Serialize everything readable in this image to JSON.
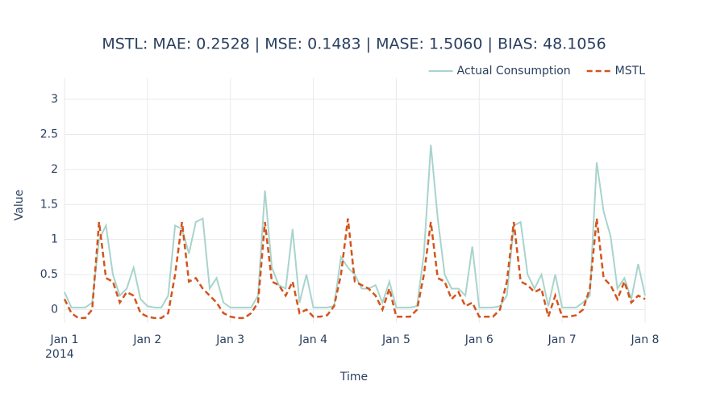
{
  "chart_data": {
    "type": "line",
    "title": "MSTL: MAE: 0.2528 | MSE: 0.1483 | MASE: 1.5060 | BIAS: 48.1056",
    "xlabel": "Time",
    "ylabel": "Value",
    "x": [
      "2014-01-01T00:00",
      "2014-01-01T02:00",
      "2014-01-01T04:00",
      "2014-01-01T06:00",
      "2014-01-01T08:00",
      "2014-01-01T10:00",
      "2014-01-01T12:00",
      "2014-01-01T14:00",
      "2014-01-01T16:00",
      "2014-01-01T18:00",
      "2014-01-01T20:00",
      "2014-01-01T22:00",
      "2014-01-02T00:00",
      "2014-01-02T02:00",
      "2014-01-02T04:00",
      "2014-01-02T06:00",
      "2014-01-02T08:00",
      "2014-01-02T10:00",
      "2014-01-02T12:00",
      "2014-01-02T14:00",
      "2014-01-02T16:00",
      "2014-01-02T18:00",
      "2014-01-02T20:00",
      "2014-01-02T22:00",
      "2014-01-03T00:00",
      "2014-01-03T02:00",
      "2014-01-03T04:00",
      "2014-01-03T06:00",
      "2014-01-03T08:00",
      "2014-01-03T10:00",
      "2014-01-03T12:00",
      "2014-01-03T14:00",
      "2014-01-03T16:00",
      "2014-01-03T18:00",
      "2014-01-03T20:00",
      "2014-01-03T22:00",
      "2014-01-04T00:00",
      "2014-01-04T02:00",
      "2014-01-04T04:00",
      "2014-01-04T06:00",
      "2014-01-04T08:00",
      "2014-01-04T10:00",
      "2014-01-04T12:00",
      "2014-01-04T14:00",
      "2014-01-04T16:00",
      "2014-01-04T18:00",
      "2014-01-04T20:00",
      "2014-01-04T22:00",
      "2014-01-05T00:00",
      "2014-01-05T02:00",
      "2014-01-05T04:00",
      "2014-01-05T06:00",
      "2014-01-05T08:00",
      "2014-01-05T10:00",
      "2014-01-05T12:00",
      "2014-01-05T14:00",
      "2014-01-05T16:00",
      "2014-01-05T18:00",
      "2014-01-05T20:00",
      "2014-01-05T22:00",
      "2014-01-06T00:00",
      "2014-01-06T02:00",
      "2014-01-06T04:00",
      "2014-01-06T06:00",
      "2014-01-06T08:00",
      "2014-01-06T10:00",
      "2014-01-06T12:00",
      "2014-01-06T14:00",
      "2014-01-06T16:00",
      "2014-01-06T18:00",
      "2014-01-06T20:00",
      "2014-01-06T22:00",
      "2014-01-07T00:00",
      "2014-01-07T02:00",
      "2014-01-07T04:00",
      "2014-01-07T06:00",
      "2014-01-07T08:00",
      "2014-01-07T10:00",
      "2014-01-07T12:00",
      "2014-01-07T14:00",
      "2014-01-07T16:00",
      "2014-01-07T18:00",
      "2014-01-07T20:00",
      "2014-01-07T22:00",
      "2014-01-08T00:00"
    ],
    "series": [
      {
        "name": "Actual Consumption",
        "color": "#a8d4cc",
        "dash": false,
        "values": [
          0.25,
          0.03,
          0.03,
          0.03,
          0.1,
          1.0,
          1.2,
          0.5,
          0.2,
          0.3,
          0.6,
          0.15,
          0.05,
          0.03,
          0.03,
          0.2,
          1.2,
          1.15,
          0.8,
          1.25,
          1.3,
          0.3,
          0.45,
          0.1,
          0.03,
          0.03,
          0.03,
          0.03,
          0.2,
          1.7,
          0.6,
          0.35,
          0.3,
          1.15,
          0.1,
          0.5,
          0.03,
          0.03,
          0.03,
          0.05,
          0.75,
          0.6,
          0.5,
          0.3,
          0.3,
          0.35,
          0.1,
          0.4,
          0.03,
          0.03,
          0.03,
          0.05,
          0.8,
          2.35,
          1.3,
          0.5,
          0.3,
          0.3,
          0.2,
          0.9,
          0.03,
          0.03,
          0.03,
          0.05,
          0.2,
          1.2,
          1.25,
          0.5,
          0.3,
          0.5,
          0.05,
          0.5,
          0.03,
          0.03,
          0.03,
          0.1,
          0.2,
          2.1,
          1.4,
          1.05,
          0.3,
          0.45,
          0.15,
          0.65,
          0.2
        ]
      },
      {
        "name": "MSTL",
        "color": "#d4541c",
        "dash": true,
        "values": [
          0.15,
          -0.05,
          -0.12,
          -0.12,
          0.0,
          1.25,
          0.45,
          0.4,
          0.1,
          0.25,
          0.2,
          -0.05,
          -0.1,
          -0.12,
          -0.12,
          -0.05,
          0.5,
          1.25,
          0.4,
          0.45,
          0.3,
          0.2,
          0.1,
          -0.05,
          -0.1,
          -0.12,
          -0.12,
          -0.05,
          0.1,
          1.25,
          0.4,
          0.35,
          0.2,
          0.4,
          -0.05,
          0.0,
          -0.1,
          -0.1,
          -0.08,
          0.05,
          0.5,
          1.3,
          0.4,
          0.35,
          0.3,
          0.2,
          0.0,
          0.3,
          -0.1,
          -0.1,
          -0.1,
          0.0,
          0.5,
          1.25,
          0.45,
          0.4,
          0.15,
          0.25,
          0.05,
          0.1,
          -0.1,
          -0.1,
          -0.1,
          0.0,
          0.4,
          1.25,
          0.4,
          0.35,
          0.25,
          0.3,
          -0.1,
          0.2,
          -0.1,
          -0.1,
          -0.08,
          0.0,
          0.3,
          1.3,
          0.45,
          0.35,
          0.15,
          0.4,
          0.1,
          0.2,
          0.15
        ]
      }
    ],
    "xlim": [
      "2014-01-01T00:00",
      "2014-01-08T00:00"
    ],
    "xticks": [
      {
        "value": "2014-01-01T00:00",
        "label": "Jan 1\n2014"
      },
      {
        "value": "2014-01-02T00:00",
        "label": "Jan 2"
      },
      {
        "value": "2014-01-03T00:00",
        "label": "Jan 3"
      },
      {
        "value": "2014-01-04T00:00",
        "label": "Jan 4"
      },
      {
        "value": "2014-01-05T00:00",
        "label": "Jan 5"
      },
      {
        "value": "2014-01-06T00:00",
        "label": "Jan 6"
      },
      {
        "value": "2014-01-07T00:00",
        "label": "Jan 7"
      },
      {
        "value": "2014-01-08T00:00",
        "label": "Jan 8"
      }
    ],
    "ylim": [
      -0.19,
      3.3
    ],
    "yticks": [
      0,
      0.5,
      1,
      1.5,
      2,
      2.5,
      3
    ],
    "grid": true,
    "legend": "top-right"
  }
}
